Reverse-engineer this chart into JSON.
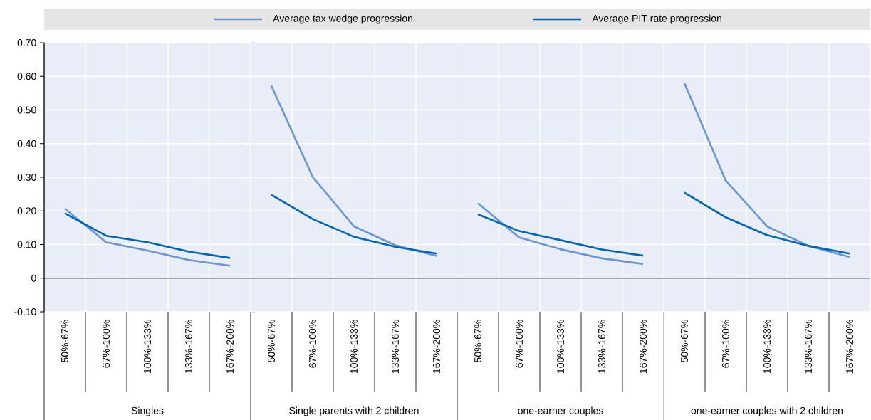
{
  "chart_data": [
    {
      "type": "line",
      "categories": [
        "50%-67%",
        "67%-100%",
        "100%-133%",
        "133%-167%",
        "167%-200%"
      ],
      "xlabel": "Singles",
      "ylim": [
        -0.1,
        0.7
      ],
      "yticks": [
        {
          "value": -0.1,
          "label": "-0.10"
        },
        0,
        {
          "value": 0.1,
          "label": "0.10"
        },
        {
          "value": 0.2,
          "label": "0.20"
        },
        {
          "value": 0.3,
          "label": "0.30"
        },
        {
          "value": 0.4,
          "label": "0.40"
        },
        {
          "value": 0.5,
          "label": "0.50"
        },
        {
          "value": 0.6,
          "label": "0.60"
        },
        {
          "value": 0.7,
          "label": "0.70"
        }
      ],
      "grid": true,
      "legend": "top",
      "ref_lines": [
        {
          "axis": "y",
          "value": 0,
          "color": "#555555"
        }
      ],
      "series": [
        {
          "name": "Average tax wedge progression",
          "color": "#6a96d0",
          "values": [
            0.207,
            0.107,
            0.082,
            0.054,
            0.037
          ]
        },
        {
          "name": "Average PIT rate progression",
          "color": "#0066b3",
          "values": [
            0.193,
            0.126,
            0.107,
            0.079,
            0.06
          ]
        }
      ]
    },
    {
      "type": "line",
      "categories": [
        "50%-67%",
        "67%-100%",
        "100%-133%",
        "133%-167%",
        "167%-200%"
      ],
      "xlabel": "Single parents with 2 children",
      "ylim": [
        -0.1,
        0.7
      ],
      "yticks": [
        -0.1,
        0,
        0.1,
        0.2,
        0.3,
        0.4,
        0.5,
        0.6,
        0.7
      ],
      "tick_labels": "x",
      "grid": true,
      "ref_lines": [
        {
          "axis": "y",
          "value": 0,
          "color": "#555555"
        }
      ],
      "series": [
        {
          "color": "#6a96d0",
          "values": [
            0.572,
            0.301,
            0.154,
            0.098,
            0.066
          ]
        },
        {
          "color": "#0066b3",
          "values": [
            0.248,
            0.176,
            0.123,
            0.093,
            0.073
          ]
        }
      ]
    },
    {
      "type": "line",
      "categories": [
        "50%-67%",
        "67%-100%",
        "100%-133%",
        "133%-167%",
        "167%-200%"
      ],
      "xlabel": "one-earner couples",
      "ylim": [
        -0.1,
        0.7
      ],
      "yticks": [
        -0.1,
        0,
        0.1,
        0.2,
        0.3,
        0.4,
        0.5,
        0.6,
        0.7
      ],
      "tick_labels": "x",
      "grid": true,
      "ref_lines": [
        {
          "axis": "y",
          "value": 0,
          "color": "#555555"
        }
      ],
      "series": [
        {
          "color": "#6a96d0",
          "values": [
            0.223,
            0.121,
            0.086,
            0.059,
            0.042
          ]
        },
        {
          "color": "#0066b3",
          "values": [
            0.19,
            0.14,
            0.113,
            0.085,
            0.067
          ]
        }
      ]
    },
    {
      "type": "line",
      "categories": [
        "50%-67%",
        "67%-100%",
        "100%-133%",
        "133%-167%",
        "167%-200%"
      ],
      "xlabel": "one-earner couples with 2 children",
      "ylim": [
        -0.1,
        0.7
      ],
      "yticks": [
        -0.1,
        0,
        0.1,
        0.2,
        0.3,
        0.4,
        0.5,
        0.6,
        0.7
      ],
      "tick_labels": "x",
      "grid": true,
      "ref_lines": [
        {
          "axis": "y",
          "value": 0,
          "color": "#555555"
        }
      ],
      "series": [
        {
          "color": "#6a96d0",
          "values": [
            0.58,
            0.29,
            0.154,
            0.096,
            0.063
          ]
        },
        {
          "color": "#0066b3",
          "values": [
            0.254,
            0.181,
            0.128,
            0.096,
            0.073
          ]
        }
      ]
    }
  ]
}
